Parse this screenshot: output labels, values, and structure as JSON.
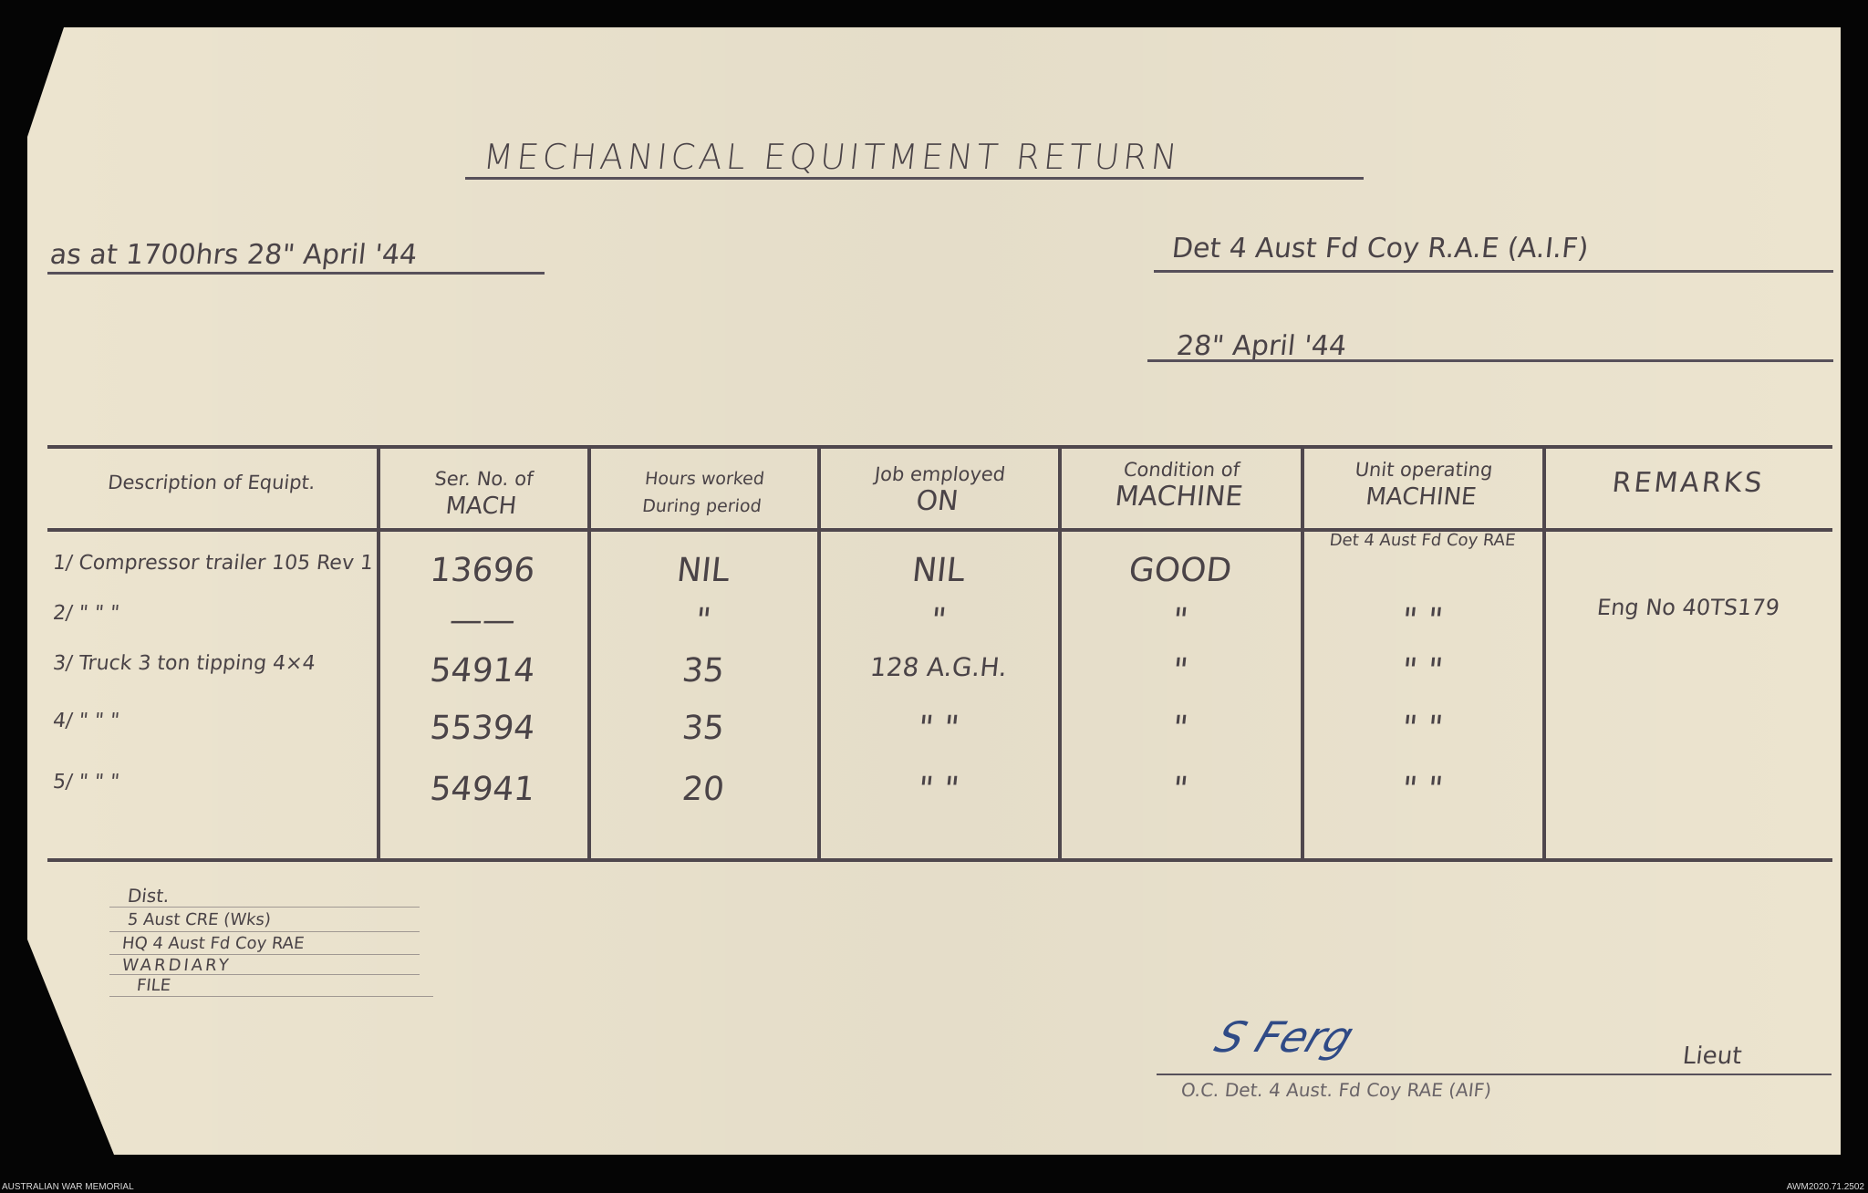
{
  "document": {
    "title": "MECHANICAL EQUITMENT RETURN",
    "as_at": "as at 1700hrs 28\" April '44",
    "unit": "Det 4 Aust Fd Coy R.A.E (A.I.F)",
    "date": "28\" April '44"
  },
  "table": {
    "headers": [
      {
        "line1": "Description of Equipt.",
        "line2": ""
      },
      {
        "line1": "Ser. No. of",
        "line2": "MACH"
      },
      {
        "line1": "Hours worked",
        "line2": "During period"
      },
      {
        "line1": "Job employed",
        "line2": "ON"
      },
      {
        "line1": "Condition of",
        "line2": "MACHINE"
      },
      {
        "line1": "Unit operating",
        "line2": "MACHINE"
      },
      {
        "line1": "REMARKS",
        "line2": ""
      }
    ],
    "rows": [
      {
        "desc": "1/ Compressor trailer 105 Rev 1",
        "ser": "13696",
        "hours": "NIL",
        "job": "NIL",
        "cond": "GOOD",
        "unit": "Det 4 Aust Fd Coy RAE",
        "remarks": ""
      },
      {
        "desc": "2/  \"   \"   \"",
        "ser": "——",
        "hours": "\"",
        "job": "\"",
        "cond": "\"",
        "unit": "\"   \"",
        "remarks": "Eng No 40TS179"
      },
      {
        "desc": "3/ Truck 3 ton tipping 4×4",
        "ser": "54914",
        "hours": "35",
        "job": "128 A.G.H.",
        "cond": "\"",
        "unit": "\"   \"",
        "remarks": ""
      },
      {
        "desc": "4/  \"   \"   \"",
        "ser": "55394",
        "hours": "35",
        "job": "\"   \"",
        "cond": "\"",
        "unit": "\"   \"",
        "remarks": ""
      },
      {
        "desc": "5/  \"   \"   \"",
        "ser": "54941",
        "hours": "20",
        "job": "\"   \"",
        "cond": "\"",
        "unit": "\"   \"",
        "remarks": ""
      }
    ]
  },
  "distribution": [
    "Dist.",
    "5 Aust CRE (Wks)",
    "HQ 4 Aust Fd Coy RAE",
    "WARDIARY",
    "FILE"
  ],
  "signature": {
    "name_signature": "S Ferg",
    "rank": "Lieut",
    "caption": "O.C. Det. 4 Aust. Fd Coy RAE (AIF)"
  },
  "footer": {
    "left": "AUSTRALIAN WAR MEMORIAL",
    "right": "AWM2020.71.2502"
  },
  "colors": {
    "paper": "#ece4cf",
    "ink": "#4a4347",
    "signature_ink": "#2f4a86",
    "background": "#050505"
  }
}
